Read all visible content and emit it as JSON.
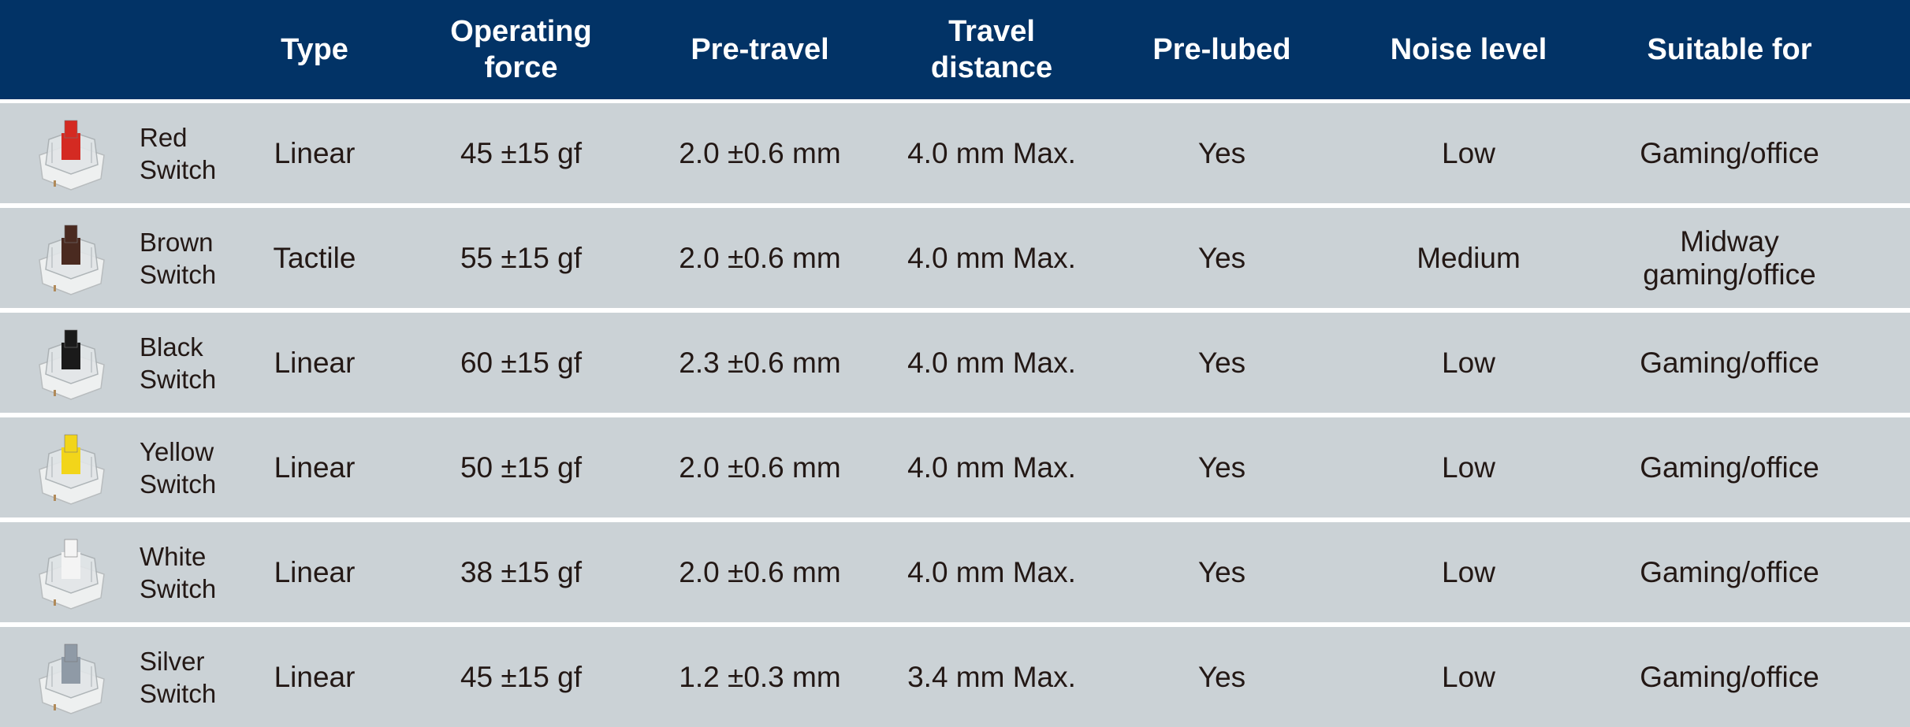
{
  "colors": {
    "header_bg": "#023366",
    "row_bg": "#cbd2d6",
    "text": "#231815"
  },
  "headers": [
    "",
    "Type",
    "Operating force",
    "Pre-travel",
    "Travel distance",
    "Pre-lubed",
    "Noise level",
    "Suitable for"
  ],
  "header_lines": {
    "type": [
      "Type"
    ],
    "force": [
      "Operating",
      "force"
    ],
    "pretravel": [
      "Pre-travel"
    ],
    "travel": [
      "Travel",
      "distance"
    ],
    "prelubed": [
      "Pre-lubed"
    ],
    "noise": [
      "Noise level"
    ],
    "suitable": [
      "Suitable for"
    ]
  },
  "rows": [
    {
      "name": "Red Switch",
      "stem_color": "#d42a22",
      "icon": "red-switch-icon",
      "type": "Linear",
      "force": "45 ±15 gf",
      "pretravel": "2.0 ±0.6 mm",
      "travel": "4.0 mm Max.",
      "prelubed": "Yes",
      "noise": "Low",
      "suitable": "Gaming/office"
    },
    {
      "name": "Brown Switch",
      "stem_color": "#4a2a20",
      "icon": "brown-switch-icon",
      "type": "Tactile",
      "force": "55 ±15 gf",
      "pretravel": "2.0 ±0.6 mm",
      "travel": "4.0 mm Max.",
      "prelubed": "Yes",
      "noise": "Medium",
      "suitable": "Midway gaming/office"
    },
    {
      "name": "Black Switch",
      "stem_color": "#1a1a1a",
      "icon": "black-switch-icon",
      "type": "Linear",
      "force": "60 ±15 gf",
      "pretravel": "2.3 ±0.6 mm",
      "travel": "4.0 mm Max.",
      "prelubed": "Yes",
      "noise": "Low",
      "suitable": "Gaming/office"
    },
    {
      "name": "Yellow Switch",
      "stem_color": "#f2d51a",
      "icon": "yellow-switch-icon",
      "type": "Linear",
      "force": "50 ±15 gf",
      "pretravel": "2.0 ±0.6 mm",
      "travel": "4.0 mm Max.",
      "prelubed": "Yes",
      "noise": "Low",
      "suitable": "Gaming/office"
    },
    {
      "name": "White Switch",
      "stem_color": "#f4f4f4",
      "icon": "white-switch-icon",
      "type": "Linear",
      "force": "38 ±15 gf",
      "pretravel": "2.0 ±0.6 mm",
      "travel": "4.0 mm Max.",
      "prelubed": "Yes",
      "noise": "Low",
      "suitable": "Gaming/office"
    },
    {
      "name": "Silver Switch",
      "stem_color": "#8f9aa6",
      "icon": "silver-switch-icon",
      "type": "Linear",
      "force": "45 ±15 gf",
      "pretravel": "1.2 ±0.3 mm",
      "travel": "3.4 mm Max.",
      "prelubed": "Yes",
      "noise": "Low",
      "suitable": "Gaming/office"
    }
  ]
}
